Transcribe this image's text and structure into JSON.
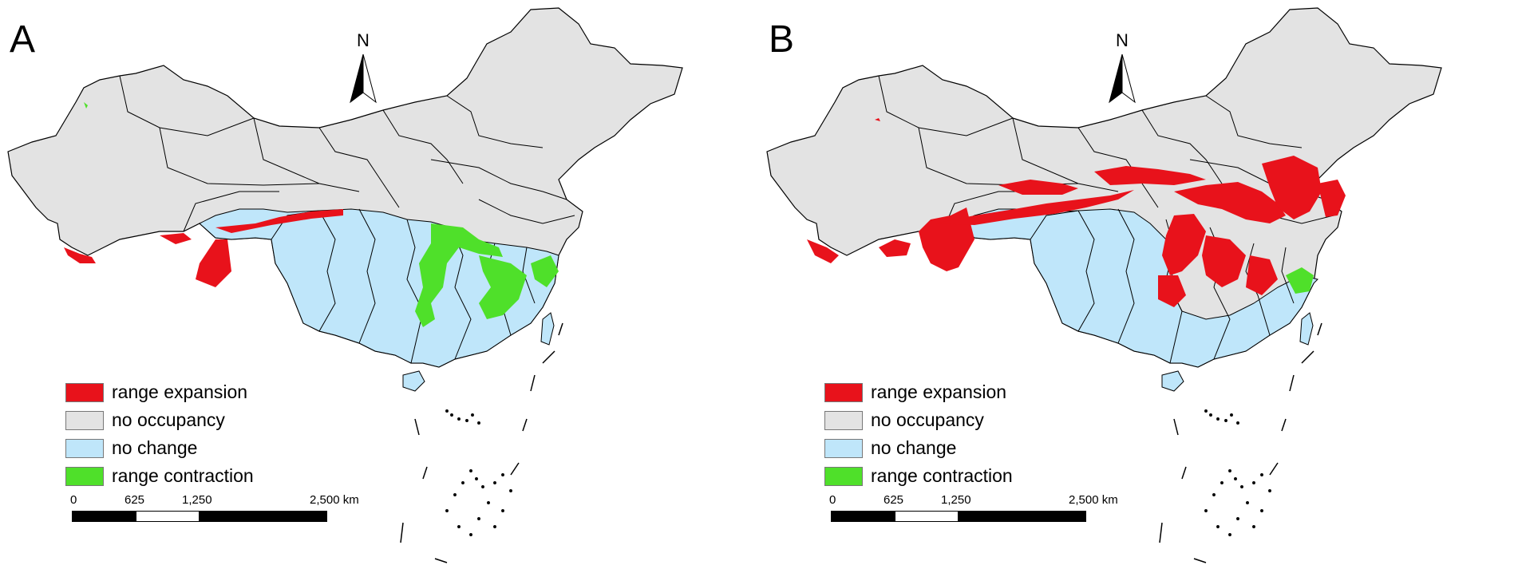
{
  "panels": [
    {
      "label": "A"
    },
    {
      "label": "B"
    }
  ],
  "north_arrow": {
    "letter": "N"
  },
  "legend": [
    {
      "label": "range expansion",
      "color": "#e8121b"
    },
    {
      "label": "no occupancy",
      "color": "#e3e3e3"
    },
    {
      "label": "no change",
      "color": "#bfe6fa"
    },
    {
      "label": "range contraction",
      "color": "#4fe02a"
    }
  ],
  "scale_bar": {
    "ticks": [
      "0",
      "625",
      "1,250",
      "2,500 km"
    ]
  },
  "colors": {
    "boundary": "#000000",
    "expansion": "#e8121b",
    "occupancy": "#e3e3e3",
    "nochange": "#bfe6fa",
    "contraction": "#4fe02a"
  }
}
